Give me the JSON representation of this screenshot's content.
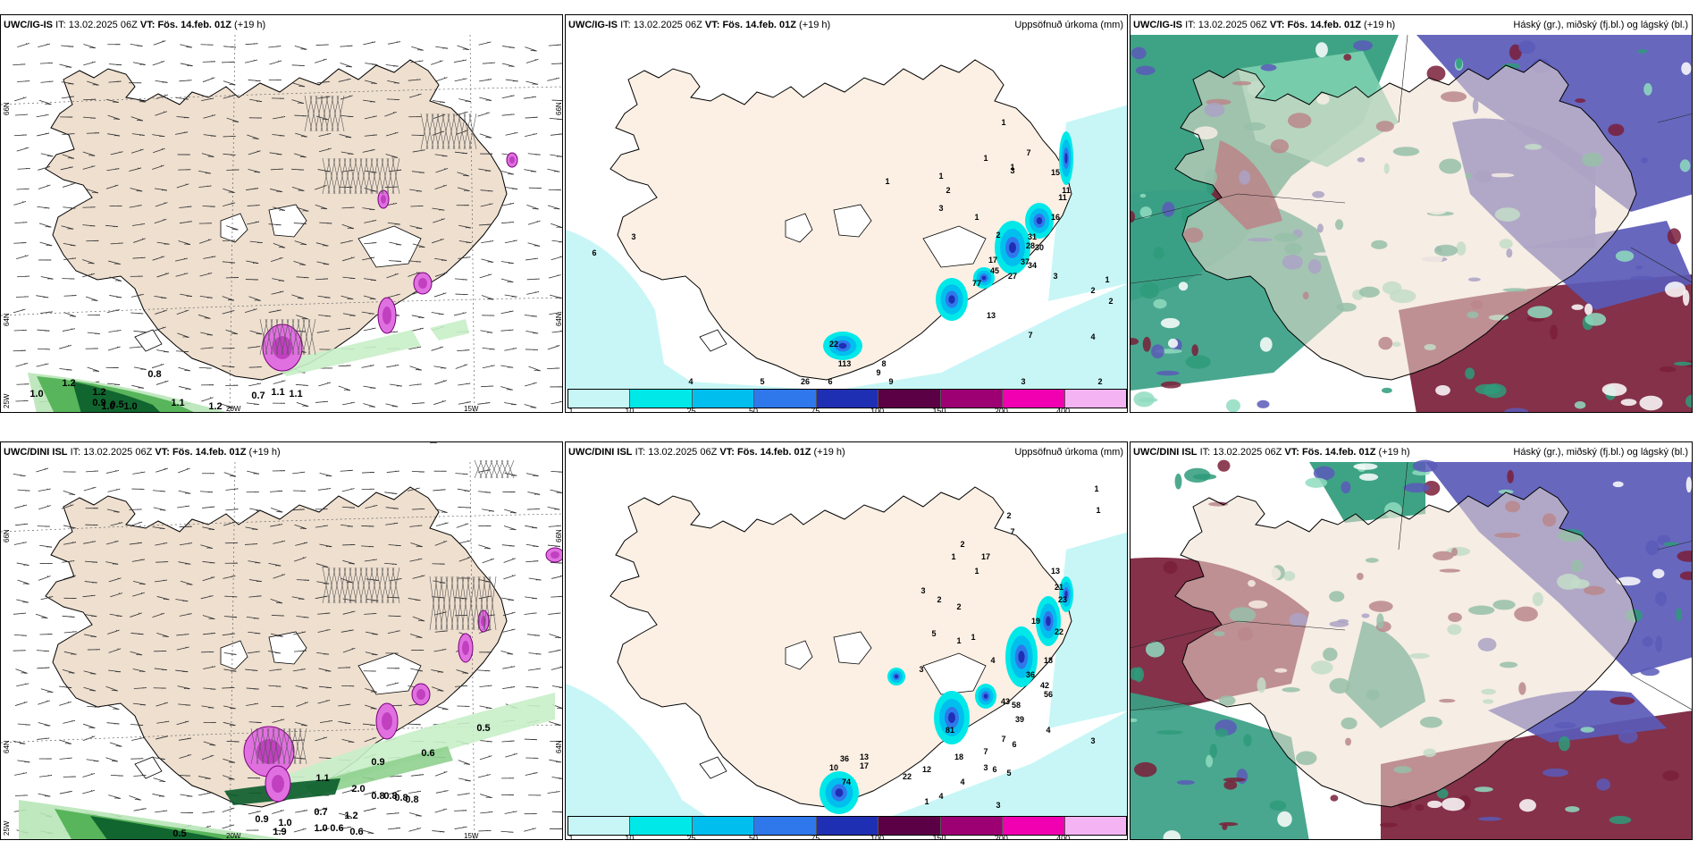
{
  "panels": [
    {
      "model": "UWC/IG-IS",
      "it_label": "IT:",
      "it": "13.02.2025 06Z",
      "vt_label": "VT:",
      "vt": "Fös. 14.feb. 01Z",
      "lead": "(+19 h)",
      "right_label": ""
    },
    {
      "model": "UWC/IG-IS",
      "it_label": "IT:",
      "it": "13.02.2025 06Z",
      "vt_label": "VT:",
      "vt": "Fös. 14.feb. 01Z",
      "lead": "(+19 h)",
      "right_label": "Uppsöfnuð úrkoma (mm)"
    },
    {
      "model": "UWC/IG-IS",
      "it_label": "IT:",
      "it": "13.02.2025 06Z",
      "vt_label": "VT:",
      "vt": "Fös. 14.feb. 01Z",
      "lead": "(+19 h)",
      "right_label": "Háský (gr.), miðský (fj.bl.) og lágský (bl.)"
    },
    {
      "model": "UWC/DINI ISL",
      "it_label": "IT:",
      "it": "13.02.2025 06Z",
      "vt_label": "VT:",
      "vt": "Fös. 14.feb. 01Z",
      "lead": "(+19 h)",
      "right_label": ""
    },
    {
      "model": "UWC/DINI ISL",
      "it_label": "IT:",
      "it": "13.02.2025 06Z",
      "vt_label": "VT:",
      "vt": "Fös. 14.feb. 01Z",
      "lead": "(+19 h)",
      "right_label": "Uppsöfnuð úrkoma (mm)"
    },
    {
      "model": "UWC/DINI ISL",
      "it_label": "IT:",
      "it": "13.02.2025 06Z",
      "vt_label": "VT:",
      "vt": "Fös. 14.feb. 01Z",
      "lead": "(+19 h)",
      "right_label": "Háský (gr.), miðský (fj.bl.) og lágský (bl.)"
    }
  ],
  "colorbar": {
    "labels": [
      "1",
      "10",
      "25",
      "50",
      "75",
      "100",
      "150",
      "200",
      "400"
    ],
    "colors": [
      "#c8f6f6",
      "#00e8e8",
      "#00bfef",
      "#2f78ec",
      "#1f2fb4",
      "#5c0046",
      "#9c0072",
      "#f000b0",
      "#f4b4f4"
    ]
  },
  "grid": {
    "lat_top": [
      "66N",
      "66N",
      "66N",
      "66N"
    ],
    "lat_bottom": [
      "64N",
      "64N",
      "64N",
      "64N"
    ],
    "lat_corner": [
      "25W",
      "25W"
    ],
    "lon_20": [
      "20W",
      "20W"
    ],
    "lon_15": [
      "15W",
      "15W"
    ]
  },
  "precip_top": [
    "1",
    "1",
    "2",
    "3",
    "1",
    "1",
    "1",
    "3",
    "7",
    "1",
    "15",
    "11",
    "11",
    "16",
    "2",
    "31",
    "28",
    "30",
    "37",
    "34",
    "27",
    "17",
    "45",
    "77",
    "3",
    "2",
    "1",
    "2",
    "13",
    "7",
    "4",
    "6",
    "3",
    "22",
    "113",
    "8",
    "9",
    "6",
    "5",
    "4",
    "26",
    "9",
    "3",
    "2"
  ],
  "precip_bottom": [
    "1",
    "1",
    "2",
    "7",
    "2",
    "17",
    "1",
    "3",
    "1",
    "2",
    "2",
    "13",
    "21",
    "23",
    "19",
    "22",
    "18",
    "5",
    "1",
    "1",
    "4",
    "3",
    "36",
    "42",
    "56",
    "43",
    "58",
    "39",
    "81",
    "7",
    "6",
    "4",
    "3",
    "7",
    "3",
    "6",
    "5",
    "4",
    "4",
    "1",
    "36",
    "10",
    "13",
    "17",
    "74",
    "18",
    "22",
    "12",
    "3"
  ],
  "pw_top": [
    "0.8",
    "1.2",
    "1.0",
    "1.2",
    "0.9",
    "0.5",
    "1.0",
    "1.1",
    "1.2",
    "0.7",
    "1.1",
    "1.1",
    "1.0"
  ],
  "pw_bottom": [
    "0.5",
    "0.6",
    "0.9",
    "1.1",
    "2.0",
    "0.8",
    "0.8",
    "0.8",
    "0.8",
    "1.2",
    "0.7",
    "0.9",
    "1.0",
    "1.0",
    "0.6",
    "0.6",
    "0.5",
    "1.9"
  ]
}
